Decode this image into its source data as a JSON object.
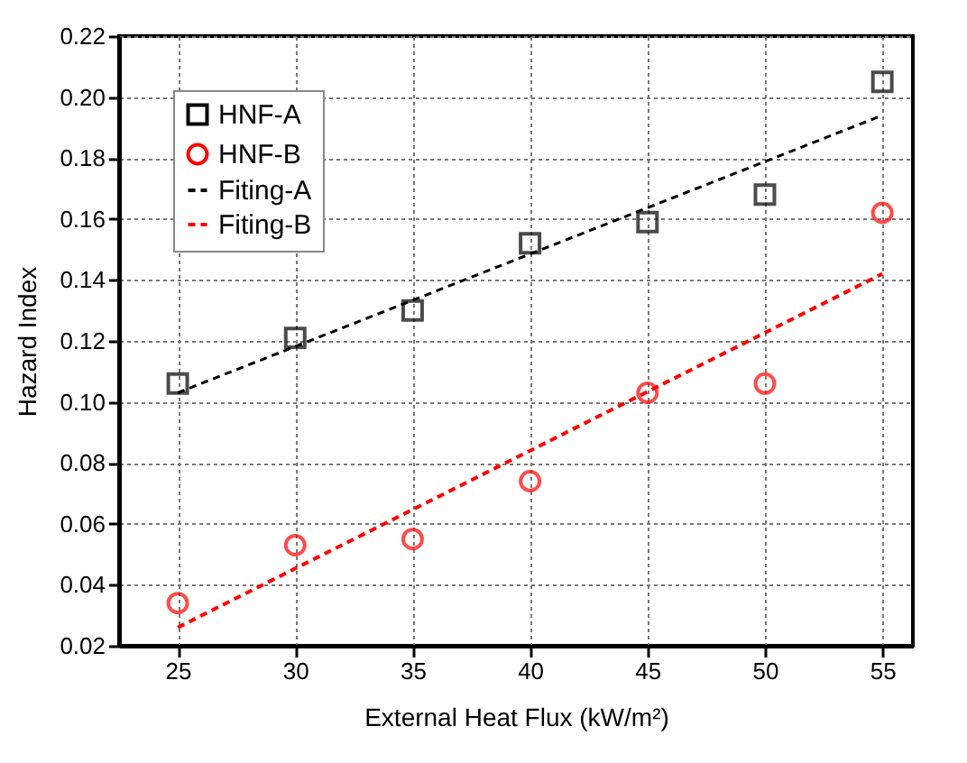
{
  "chart_data": {
    "type": "scatter",
    "xlabel": "External Heat Flux (kW/m²)",
    "ylabel": "Hazard Index",
    "xlim": [
      22.5,
      56.3
    ],
    "xticks": [
      25,
      30,
      35,
      40,
      45,
      50,
      55
    ],
    "ylim": [
      0.02,
      0.22
    ],
    "yticks": [
      0.02,
      0.04,
      0.06,
      0.08,
      {
        "value": 0.1,
        "label": "0.10"
      },
      0.12,
      0.14,
      0.16,
      0.18,
      {
        "value": 0.2,
        "label": "0.20"
      },
      0.22
    ],
    "grid": true,
    "legend": "top left",
    "series": [
      {
        "name": "HNF-A",
        "marker": "square",
        "color": "#000000",
        "x": [
          25,
          30,
          35,
          40,
          45,
          50,
          55
        ],
        "values": [
          0.106,
          0.121,
          0.13,
          0.152,
          0.159,
          0.168,
          0.205
        ]
      },
      {
        "name": "HNF-B",
        "marker": "circle",
        "color": "#ff0000",
        "x": [
          25,
          30,
          35,
          40,
          45,
          50,
          55
        ],
        "values": [
          0.034,
          0.053,
          0.055,
          0.074,
          0.103,
          0.106,
          0.162
        ]
      },
      {
        "name": "Fiting-A",
        "type": "line",
        "line_style": "dashed",
        "color": "#000000",
        "x": [
          25,
          55
        ],
        "values": [
          0.103,
          0.194
        ]
      },
      {
        "name": "Fiting-B",
        "type": "line",
        "line_style": "dashed",
        "color": "#ff0000",
        "x": [
          25,
          55
        ],
        "values": [
          0.026,
          0.142
        ]
      }
    ]
  }
}
